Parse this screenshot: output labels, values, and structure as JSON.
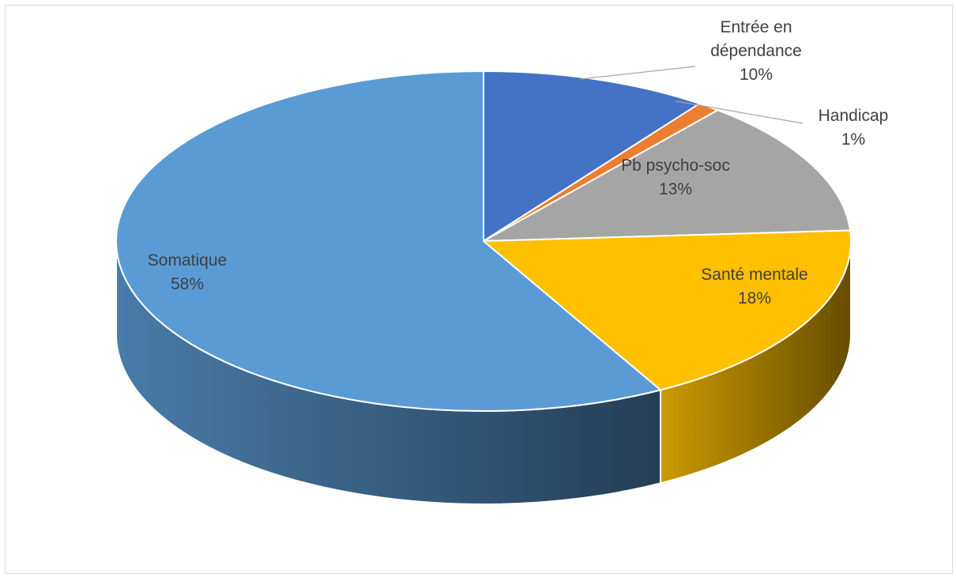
{
  "chart_data": {
    "type": "pie",
    "categories": [
      "Entrée en dépendance",
      "Handicap",
      "Pb psycho-soc",
      "Santé mentale",
      "Somatique"
    ],
    "values": [
      10,
      1,
      13,
      18,
      58
    ],
    "value_labels": [
      "10%",
      "1%",
      "13%",
      "18%",
      "58%"
    ],
    "colors": [
      "#4472c4",
      "#ed7d31",
      "#a5a5a5",
      "#ffc000",
      "#5b9bd5"
    ],
    "three_d": true
  }
}
